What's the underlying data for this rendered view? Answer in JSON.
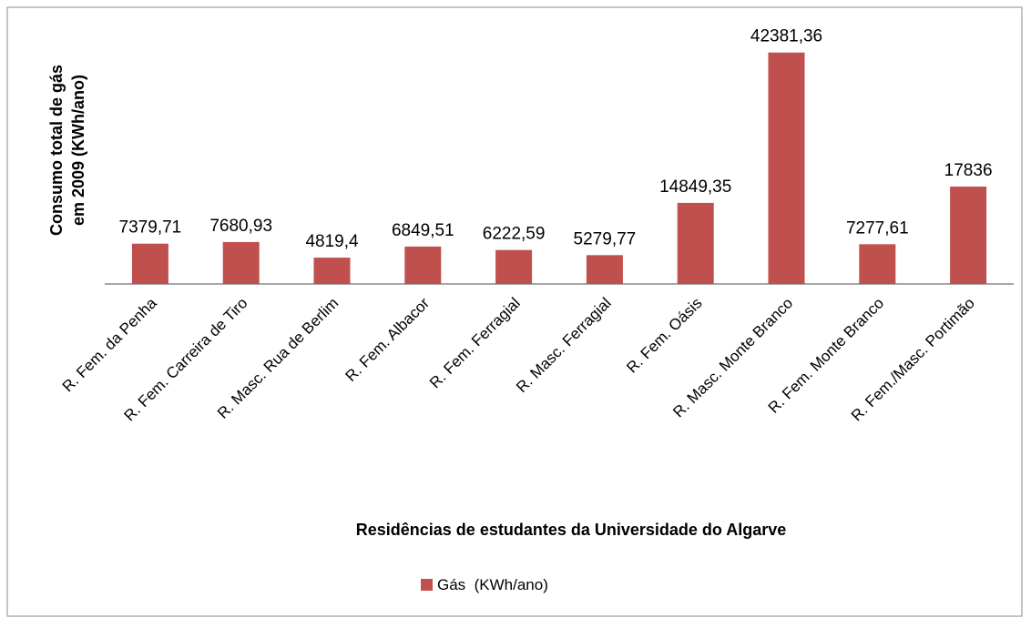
{
  "chart_data": {
    "type": "bar",
    "ylabel": [
      "Consumo total de gás",
      "em 2009 (KWh/ano)"
    ],
    "xlabel": "Residências de estudantes da Universidade do Algarve",
    "categories": [
      "R. Fem. da Penha",
      "R. Fem. Carreira de Tiro",
      "R. Masc. Rua de Berlim",
      "R. Fem. Albacor",
      "R. Fem. Ferragial",
      "R. Masc. Ferragial",
      "R. Fem. Oásis",
      "R. Masc. Monte Branco",
      "R. Fem. Monte Branco",
      "R. Fem./Masc. Portimão"
    ],
    "series": [
      {
        "name": "Gás  (KWh/ano)",
        "color": "#c0504d",
        "values": [
          7379.71,
          7680.93,
          4819.4,
          6849.51,
          6222.59,
          5279.77,
          14849.35,
          42381.36,
          7277.61,
          17836
        ],
        "value_labels": [
          "7379,71",
          "7680,93",
          "4819,4",
          "6849,51",
          "6222,59",
          "5279,77",
          "14849,35",
          "42381,36",
          "7277,61",
          "17836"
        ]
      }
    ],
    "ylim": [
      0,
      50000
    ],
    "legend": "bottom"
  }
}
